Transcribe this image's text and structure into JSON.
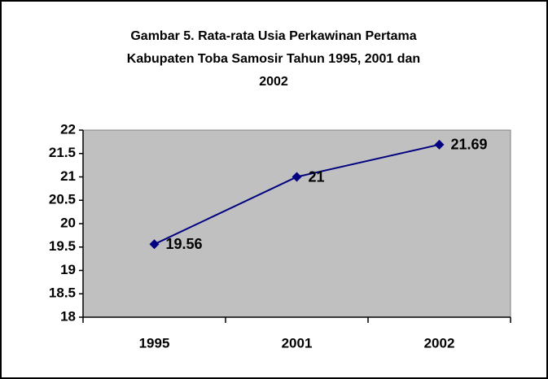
{
  "chart_data": {
    "type": "line",
    "title": [
      "Gambar 5. Rata-rata Usia Perkawinan Pertama",
      "Kabupaten Toba Samosir Tahun 1995, 2001 dan",
      "2002"
    ],
    "categories": [
      "1995",
      "2001",
      "2002"
    ],
    "values": [
      19.56,
      21,
      21.69
    ],
    "color": "#000080",
    "ylim": [
      18,
      22
    ],
    "yticks": [
      18,
      18.5,
      19,
      19.5,
      20,
      20.5,
      21,
      21.5,
      22
    ],
    "grid": false,
    "data_labels": true
  }
}
